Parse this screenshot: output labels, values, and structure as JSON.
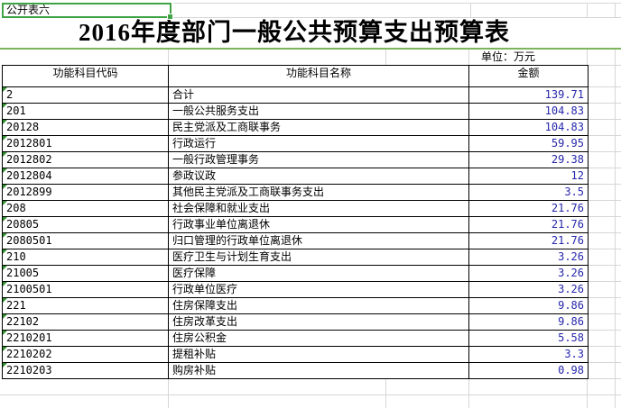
{
  "sheet": {
    "corner_label": "公开表六",
    "title": "2016年度部门一般公共预算支出预算表",
    "unit_label": "单位：万元",
    "columns": [
      "功能科目代码",
      "功能科目名称",
      "金额"
    ],
    "rows": [
      {
        "code": "2",
        "name": "合计",
        "amount": "139.71"
      },
      {
        "code": "201",
        "name": "一般公共服务支出",
        "amount": "104.83"
      },
      {
        "code": "20128",
        "name": "民主党派及工商联事务",
        "amount": "104.83"
      },
      {
        "code": "2012801",
        "name": "行政运行",
        "amount": "59.95"
      },
      {
        "code": "2012802",
        "name": "一般行政管理事务",
        "amount": "29.38"
      },
      {
        "code": "2012804",
        "name": "参政议政",
        "amount": "12"
      },
      {
        "code": "2012899",
        "name": "其他民主党派及工商联事务支出",
        "amount": "3.5"
      },
      {
        "code": "208",
        "name": "社会保障和就业支出",
        "amount": "21.76"
      },
      {
        "code": "20805",
        "name": "行政事业单位离退休",
        "amount": "21.76"
      },
      {
        "code": "2080501",
        "name": "归口管理的行政单位离退休",
        "amount": "21.76"
      },
      {
        "code": "210",
        "name": "医疗卫生与计划生育支出",
        "amount": "3.26"
      },
      {
        "code": "21005",
        "name": "医疗保障",
        "amount": "3.26"
      },
      {
        "code": "2100501",
        "name": "行政单位医疗",
        "amount": "3.26"
      },
      {
        "code": "221",
        "name": "住房保障支出",
        "amount": "9.86"
      },
      {
        "code": "22102",
        "name": "住房改革支出",
        "amount": "9.86"
      },
      {
        "code": "2210201",
        "name": "住房公积金",
        "amount": "5.58"
      },
      {
        "code": "2210202",
        "name": "提租补贴",
        "amount": "3.3"
      },
      {
        "code": "2210203",
        "name": "购房补贴",
        "amount": "0.98"
      }
    ],
    "indicators": {
      "code_flag_icon": "green-corner-triangle",
      "selection_fill_handle": "green-square"
    },
    "colors": {
      "amount_text": "#2727ac",
      "selection_green": "#3fa346",
      "triangle_green": "#2f8f2f",
      "page_line_green": "#7cb45c",
      "gridline_gray": "#d6d6d6",
      "table_border": "#000000"
    }
  }
}
